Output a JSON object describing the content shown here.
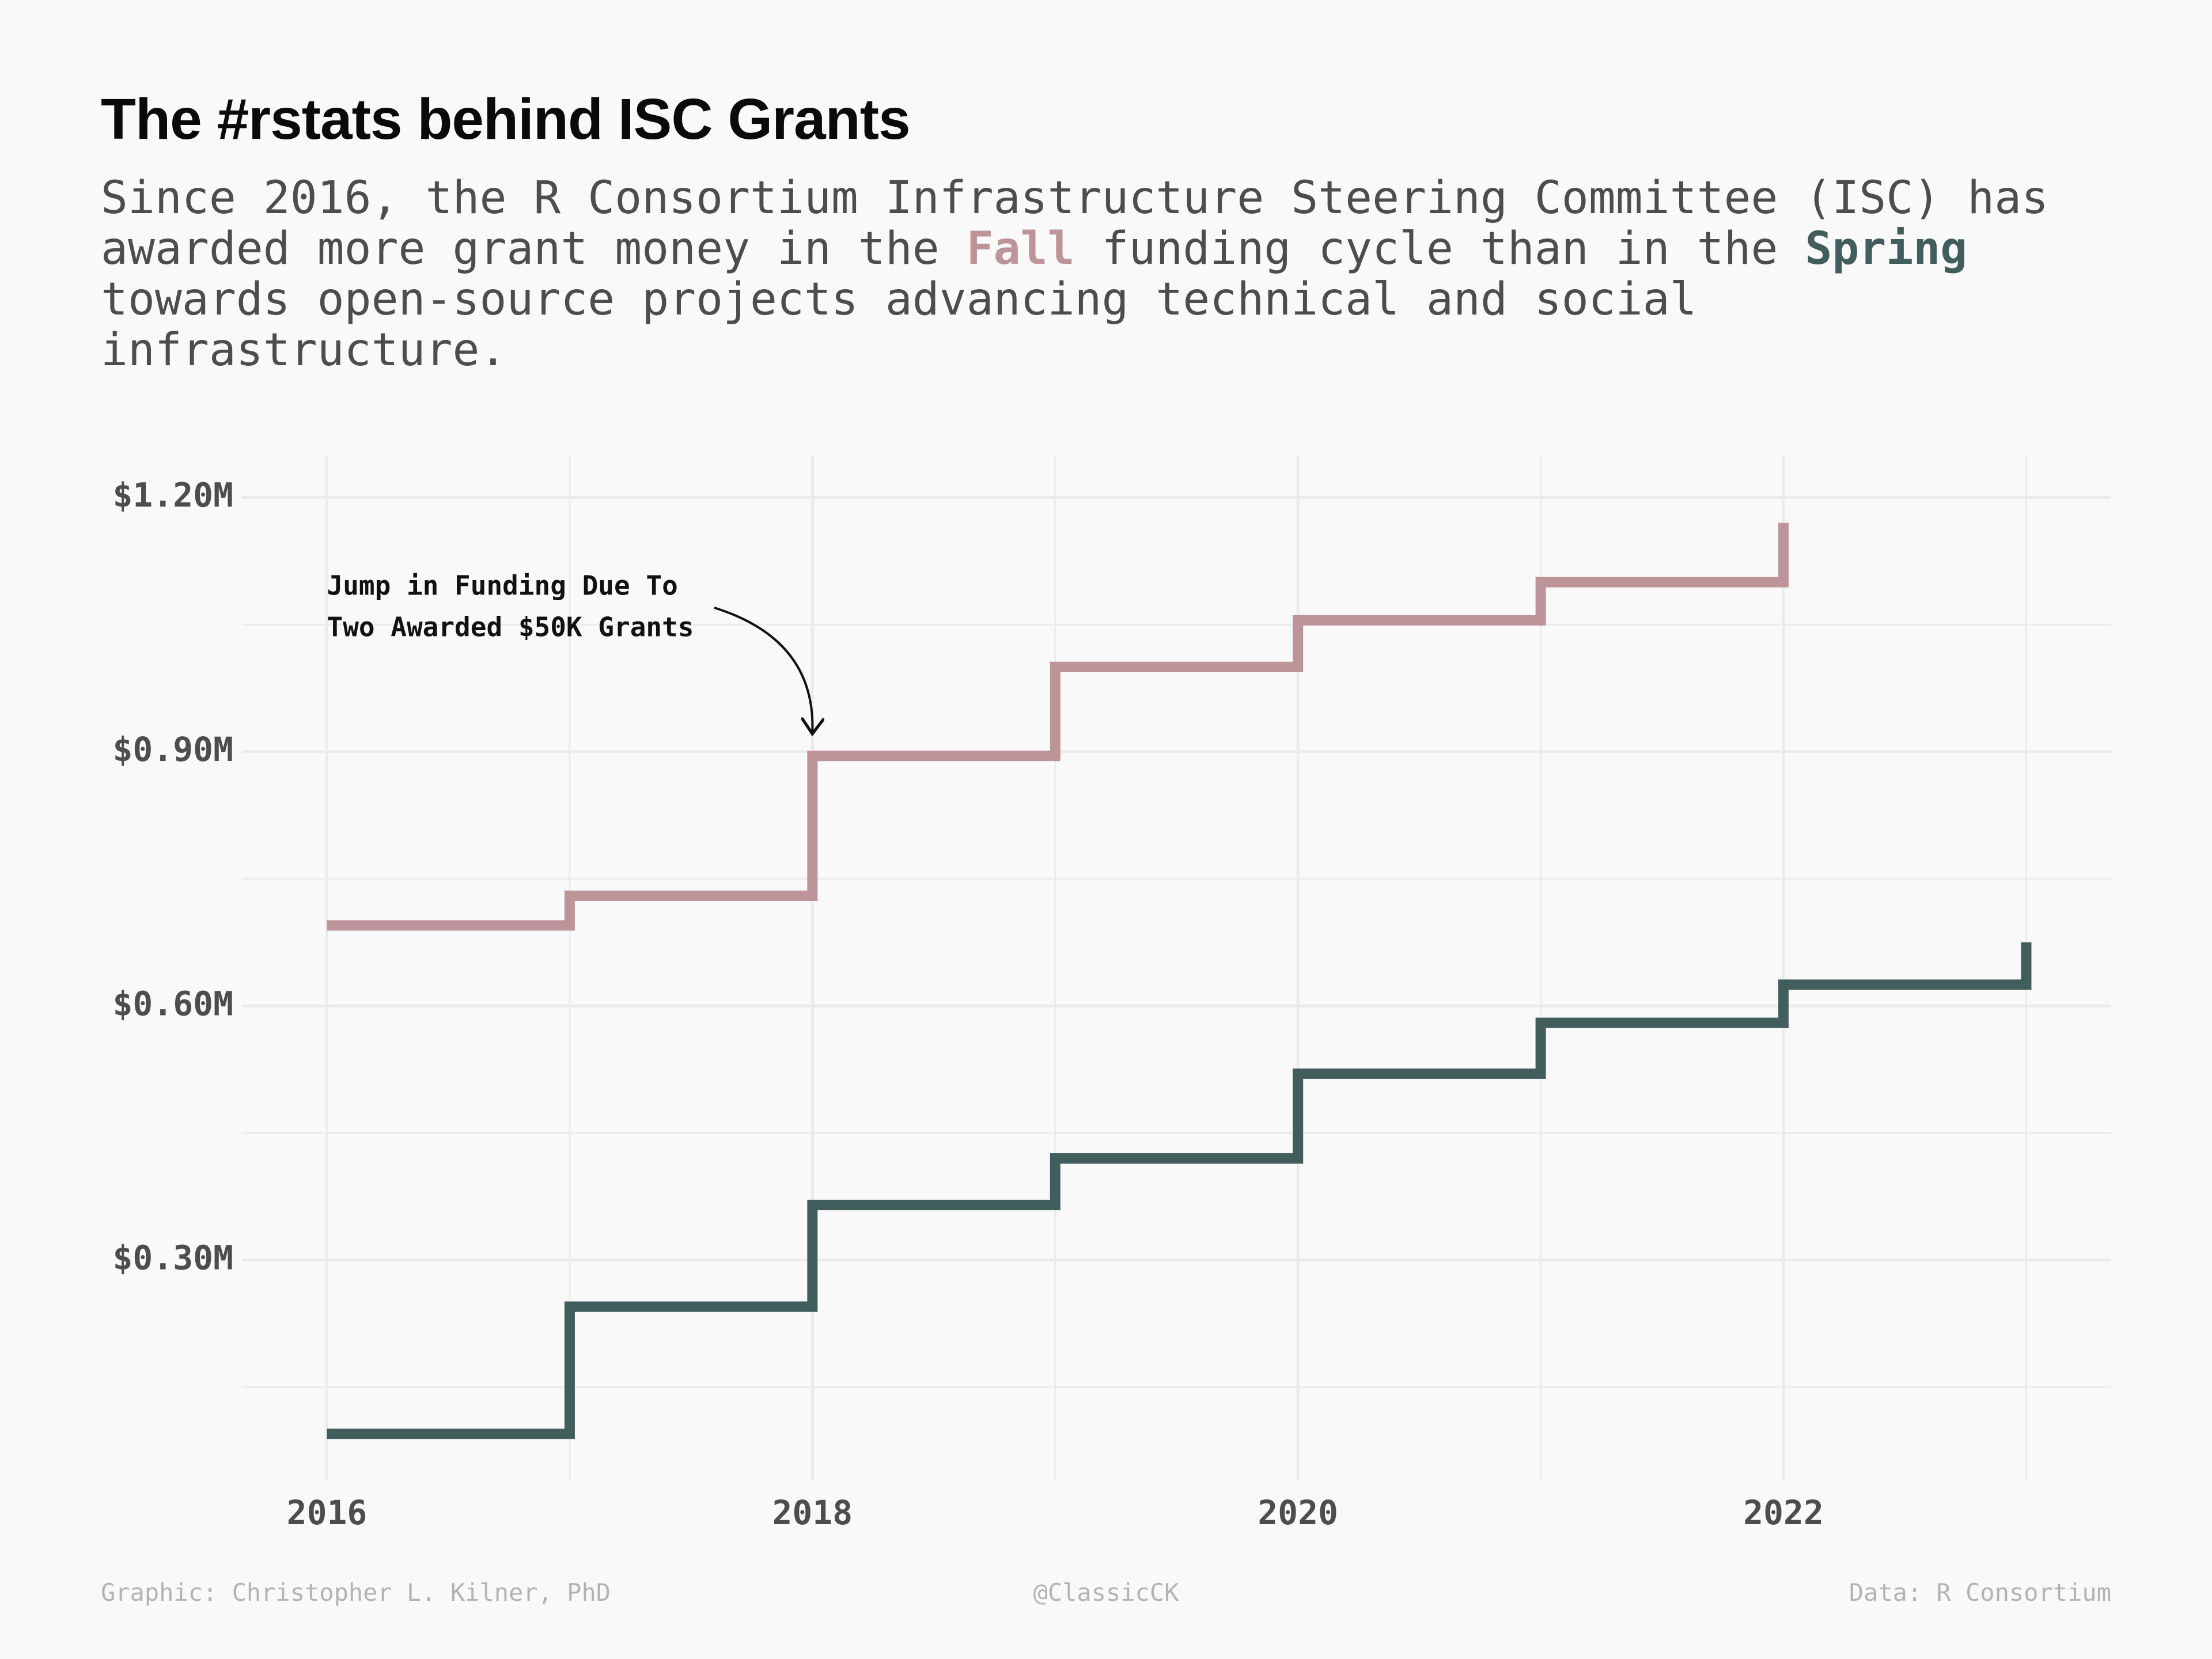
{
  "title": "The #rstats behind ISC Grants",
  "subtitle": {
    "part1": "Since 2016, the R Consortium Infrastructure Steering Committee (ISC) has awarded more grant money in the ",
    "fall": "Fall",
    "part2": " funding cycle than in the ",
    "spring": "Spring",
    "part3": " towards open-source projects advancing technical and social infrastructure."
  },
  "colors": {
    "fall": "#bc9499",
    "spring": "#425e5c",
    "grid": "#ebebeb"
  },
  "chart_data": {
    "type": "line",
    "step": true,
    "xlim": [
      2015.65,
      2023.35
    ],
    "ylim": [
      0.04,
      1.25
    ],
    "y_ticks": [
      0.3,
      0.6,
      0.9,
      1.2
    ],
    "y_tick_labels": [
      "$0.30M",
      "$0.60M",
      "$0.90M",
      "$1.20M"
    ],
    "x_ticks": [
      2016,
      2018,
      2020,
      2022
    ],
    "x_tick_labels": [
      "2016",
      "2018",
      "2020",
      "2022"
    ],
    "grid": true,
    "series": [
      {
        "name": "Fall",
        "color": "#bc9499",
        "x": [
          2016,
          2017,
          2018,
          2019,
          2020,
          2021,
          2022
        ],
        "y": [
          0.695,
          0.73,
          0.895,
          1.0,
          1.055,
          1.1,
          1.17
        ]
      },
      {
        "name": "Spring",
        "color": "#425e5c",
        "x": [
          2016,
          2017,
          2018,
          2019,
          2020,
          2021,
          2022,
          2023
        ],
        "y": [
          0.095,
          0.245,
          0.365,
          0.42,
          0.52,
          0.58,
          0.625,
          0.675
        ]
      }
    ],
    "annotation": {
      "lines": [
        "Jump in Funding Due To",
        "Two Awarded $50K Grants"
      ],
      "target_x": 2018,
      "target_y": 0.9
    }
  },
  "footer": {
    "left": "Graphic: Christopher L. Kilner, PhD",
    "center": "@ClassicCK",
    "right": "Data: R Consortium"
  }
}
